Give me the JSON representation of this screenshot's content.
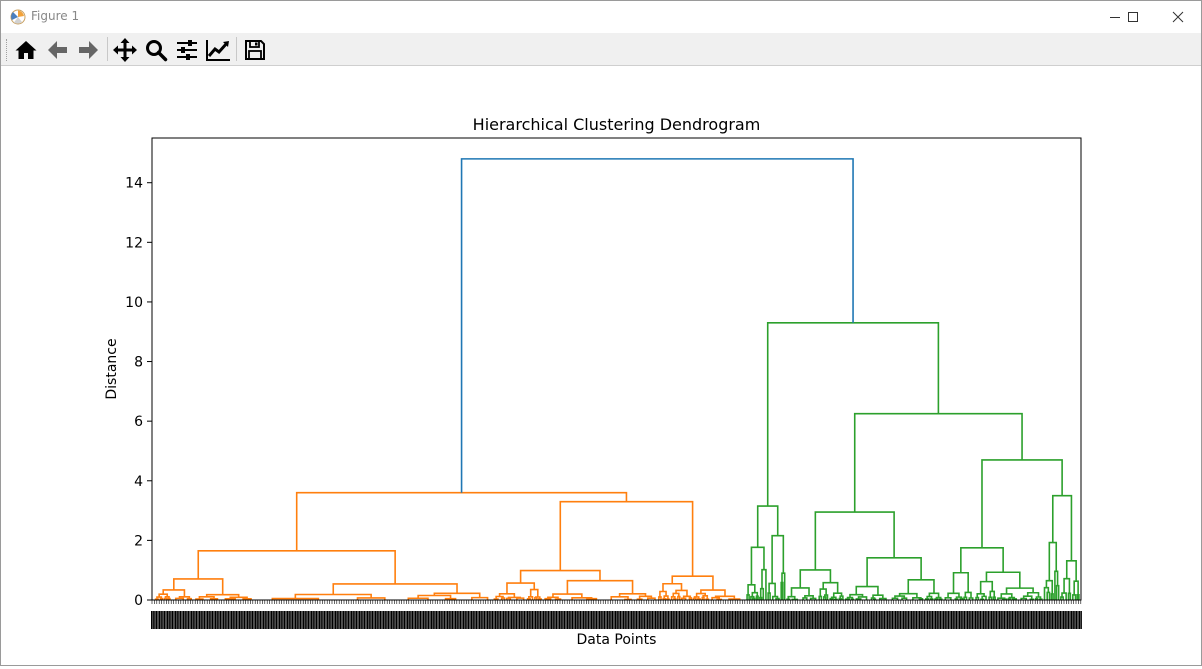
{
  "window": {
    "title": "Figure 1",
    "controls": {
      "minimize": "minimize-icon",
      "maximize": "maximize-icon",
      "close": "close-icon"
    }
  },
  "toolbar": {
    "items": [
      {
        "name": "home-button",
        "icon": "home-icon"
      },
      {
        "name": "back-button",
        "icon": "arrow-left-icon"
      },
      {
        "name": "forward-button",
        "icon": "arrow-right-icon"
      },
      {
        "name": "pan-button",
        "icon": "move-icon"
      },
      {
        "name": "zoom-button",
        "icon": "magnifier-icon"
      },
      {
        "name": "configure-subplots-button",
        "icon": "sliders-icon"
      },
      {
        "name": "edit-axis-button",
        "icon": "line-chart-icon"
      },
      {
        "name": "save-button",
        "icon": "floppy-disk-icon"
      }
    ]
  },
  "chart_data": {
    "type": "dendrogram",
    "title": "Hierarchical Clustering Dendrogram",
    "xlabel": "Data Points",
    "ylabel": "Distance",
    "ylim": [
      0,
      15.5
    ],
    "yticks": [
      0,
      2,
      4,
      6,
      8,
      10,
      12,
      14
    ],
    "grid": false,
    "colors": {
      "root": "#1f77b4",
      "cluster_1": "#ff7f0e",
      "cluster_2": "#2ca02c"
    },
    "root_link": {
      "height": 14.8,
      "color": "root"
    },
    "clusters": [
      {
        "name": "cluster_1",
        "color": "cluster_1",
        "merge_heights": [
          3.6,
          3.3,
          1.65,
          1.75,
          1.3,
          0.9,
          0.65,
          0.55,
          0.45,
          0.4,
          0.35,
          0.3,
          0.25,
          0.2,
          0.15,
          0.1
        ]
      },
      {
        "name": "cluster_2",
        "color": "cluster_2",
        "merge_heights": [
          9.3,
          6.25,
          4.7,
          3.15,
          2.95,
          3.5,
          2.45,
          2.3,
          2.1,
          1.75,
          1.5,
          1.3,
          1.0,
          0.8,
          0.6,
          0.45,
          0.3,
          0.2,
          0.1
        ]
      }
    ]
  }
}
